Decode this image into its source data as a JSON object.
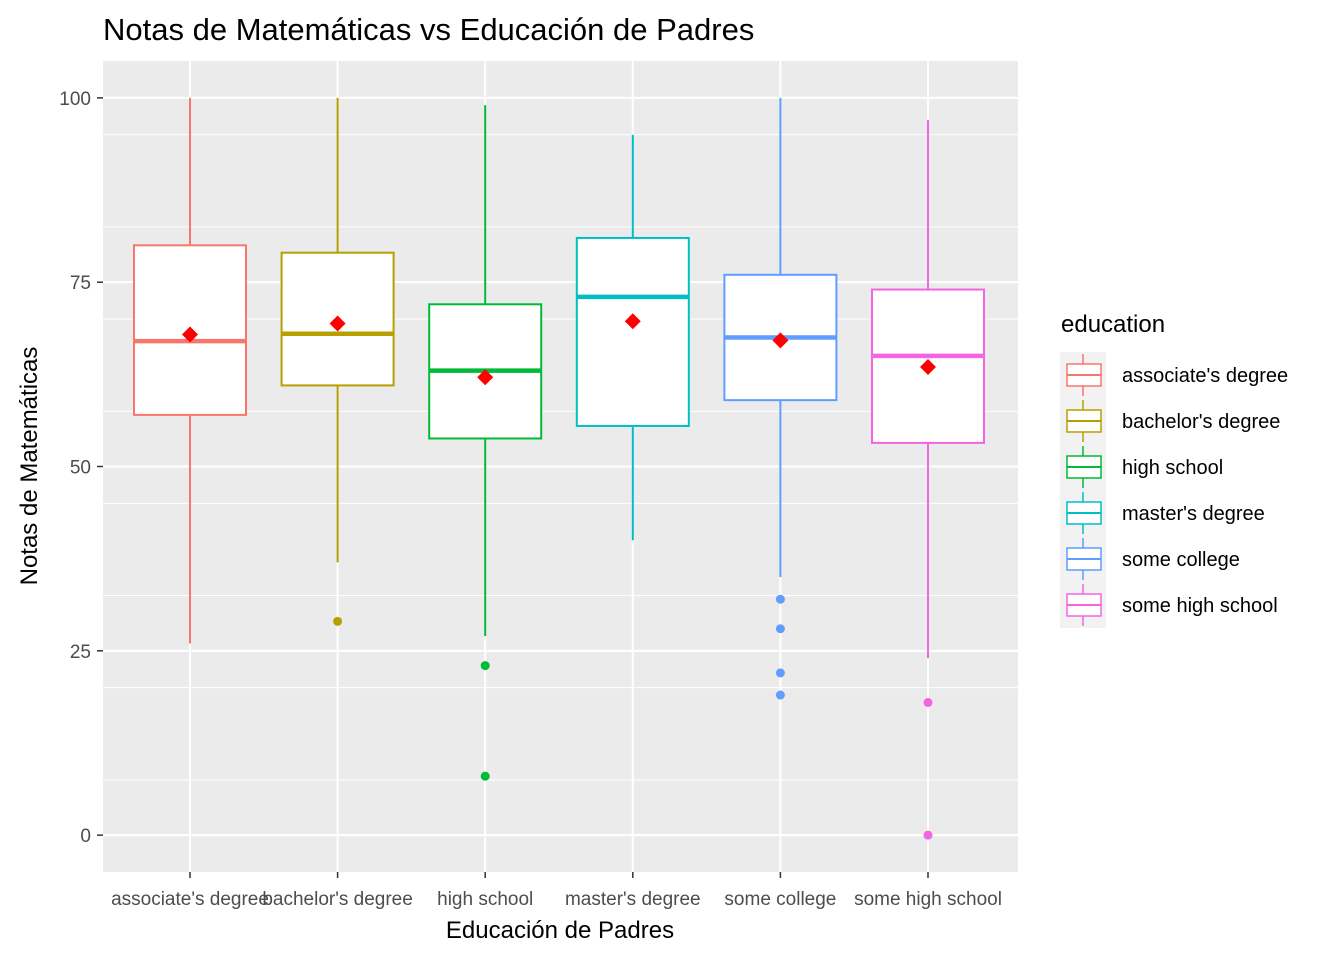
{
  "chart_data": {
    "type": "box",
    "title": "Notas de Matemáticas vs Educación de Padres",
    "xlabel": "Educación de Padres",
    "ylabel": "Notas de Matemáticas",
    "ylim": [
      -5,
      105
    ],
    "yticks": [
      0,
      25,
      50,
      75,
      100
    ],
    "grid": true,
    "legend_title": "education",
    "legend_position": "right",
    "categories": [
      "associate's degree",
      "bachelor's degree",
      "high school",
      "master's degree",
      "some college",
      "some high school"
    ],
    "series": [
      {
        "name": "associate's degree",
        "color": "#F8766D",
        "min": 26,
        "q1": 57,
        "median": 67,
        "q3": 80,
        "max": 100,
        "mean": 67.9,
        "outliers": []
      },
      {
        "name": "bachelor's degree",
        "color": "#B79F00",
        "min": 37,
        "q1": 61,
        "median": 68,
        "q3": 79,
        "max": 100,
        "mean": 69.4,
        "outliers": [
          29
        ]
      },
      {
        "name": "high school",
        "color": "#00BA38",
        "min": 27,
        "q1": 53.8,
        "median": 63,
        "q3": 72,
        "max": 99,
        "mean": 62.1,
        "outliers": [
          23,
          8
        ]
      },
      {
        "name": "master's degree",
        "color": "#00BFC4",
        "min": 40,
        "q1": 55.5,
        "median": 73,
        "q3": 81,
        "max": 95,
        "mean": 69.7,
        "outliers": []
      },
      {
        "name": "some college",
        "color": "#619CFF",
        "min": 35,
        "q1": 59,
        "median": 67.5,
        "q3": 76,
        "max": 100,
        "mean": 67.1,
        "outliers": [
          32,
          28,
          22,
          19
        ]
      },
      {
        "name": "some high school",
        "color": "#F564E3",
        "min": 24,
        "q1": 53.2,
        "median": 65,
        "q3": 74,
        "max": 97,
        "mean": 63.5,
        "outliers": [
          18,
          0
        ]
      }
    ],
    "mean_marker_color": "#FF0000"
  }
}
